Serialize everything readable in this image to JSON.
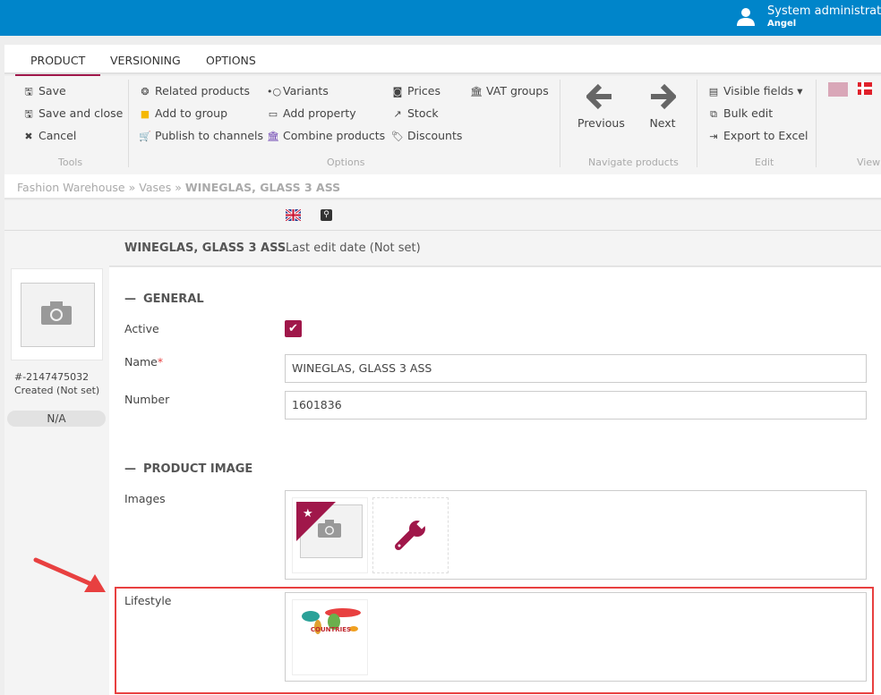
{
  "header": {
    "user_name": "System administrator",
    "user_sub": "Angel",
    "brand_color": "#0085ca"
  },
  "tabs": [
    {
      "label": "PRODUCT",
      "active": true
    },
    {
      "label": "VERSIONING"
    },
    {
      "label": "OPTIONS"
    }
  ],
  "ribbon": {
    "tools": {
      "label": "Tools",
      "items": [
        "Save",
        "Save and close",
        "Cancel"
      ]
    },
    "options": {
      "label": "Options",
      "items": [
        "Related products",
        "Add to group",
        "Publish to channels",
        "Variants",
        "Add property",
        "Combine products",
        "Prices",
        "Stock",
        "Discounts",
        "VAT groups"
      ]
    },
    "navigate": {
      "label": "Navigate products",
      "previous": "Previous",
      "next": "Next"
    },
    "edit": {
      "label": "Edit",
      "items": [
        "Visible fields",
        "Bulk edit",
        "Export to Excel"
      ]
    },
    "view": {
      "label": "View"
    }
  },
  "breadcrumb": {
    "items": [
      "Fashion Warehouse",
      "Vases"
    ],
    "sep": "»",
    "current": "WINEGLAS, GLASS 3 ASS"
  },
  "product": {
    "title": "WINEGLAS, GLASS 3 ASS",
    "last_edit": "Last edit date (Not set)",
    "id": "#-2147475032",
    "created": "Created (Not set)",
    "status": "N/A"
  },
  "general": {
    "title": "GENERAL",
    "active_label": "Active",
    "active": true,
    "name_label": "Name",
    "required_mark": "*",
    "name_value": "WINEGLAS, GLASS 3 ASS",
    "number_label": "Number",
    "number_value": "1601836"
  },
  "image": {
    "title": "PRODUCT IMAGE",
    "images_label": "Images",
    "lifestyle_label": "Lifestyle",
    "lifestyle_thumb_text": "COUNTRIES"
  },
  "colors": {
    "accent": "#a0174a",
    "highlight": "#e84040"
  }
}
